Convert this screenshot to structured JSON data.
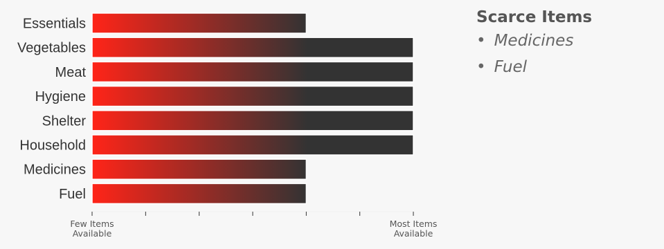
{
  "chart_data": {
    "type": "bar",
    "orientation": "horizontal",
    "categories": [
      "Essentials",
      "Vegetables",
      "Meat",
      "Hygiene",
      "Shelter",
      "Household",
      "Medicines",
      "Fuel"
    ],
    "values": [
      4,
      6,
      6,
      6,
      6,
      6,
      4,
      4
    ],
    "xlim": [
      0,
      6
    ],
    "x_tick_count": 7,
    "x_tick_labels": [
      {
        "value": 0,
        "lines": [
          "Few Items",
          "Available"
        ]
      },
      {
        "value": 6,
        "lines": [
          "Most Items",
          "Available"
        ]
      }
    ],
    "bar_gradient": {
      "start": "#ff2418",
      "end": "#333333"
    },
    "grid": false
  },
  "sidebar": {
    "title": "Scarce Items",
    "items": [
      "Medicines",
      "Fuel"
    ]
  }
}
